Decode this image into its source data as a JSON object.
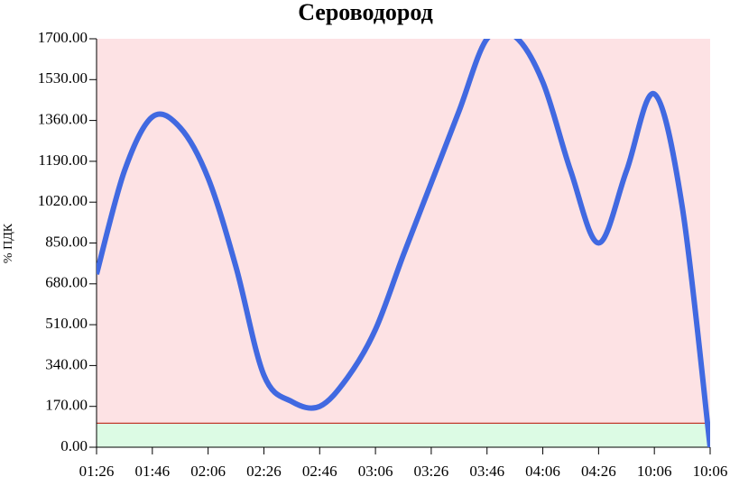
{
  "chart_data": {
    "type": "line",
    "title": "Сероводород",
    "y_label": "% ПДК",
    "categories": [
      "01:26",
      null,
      "01:46",
      null,
      "02:06",
      null,
      "02:26",
      null,
      "02:46",
      null,
      "03:06",
      null,
      "03:26",
      null,
      "03:46",
      null,
      "04:06",
      null,
      "04:26",
      null,
      "10:06",
      null,
      "10:06"
    ],
    "series": [
      {
        "name": "Сероводород",
        "color": "#4169e1",
        "values": [
          720,
          1150,
          1375,
          1330,
          1120,
          750,
          300,
          190,
          170,
          290,
          490,
          800,
          1100,
          1400,
          1700,
          1710,
          1520,
          1150,
          850,
          1150,
          1470,
          1000,
          0
        ]
      }
    ],
    "threshold": 100,
    "threshold_color": "#c0392b",
    "above_color": "#fde2e4",
    "below_color": "#dcfbe4",
    "ylim": [
      0,
      1700
    ],
    "yticks": [
      {
        "value": 0,
        "label": "0.00"
      },
      {
        "value": 170,
        "label": "170.00"
      },
      {
        "value": 340,
        "label": "340.00"
      },
      {
        "value": 510,
        "label": "510.00"
      },
      {
        "value": 680,
        "label": "680.00"
      },
      {
        "value": 850,
        "label": "850.00"
      },
      {
        "value": 1020,
        "label": "1020.00"
      },
      {
        "value": 1190,
        "label": "1190.00"
      },
      {
        "value": 1360,
        "label": "1360.00"
      },
      {
        "value": 1530,
        "label": "1530.00"
      },
      {
        "value": 1700,
        "label": "1700.00"
      }
    ]
  }
}
